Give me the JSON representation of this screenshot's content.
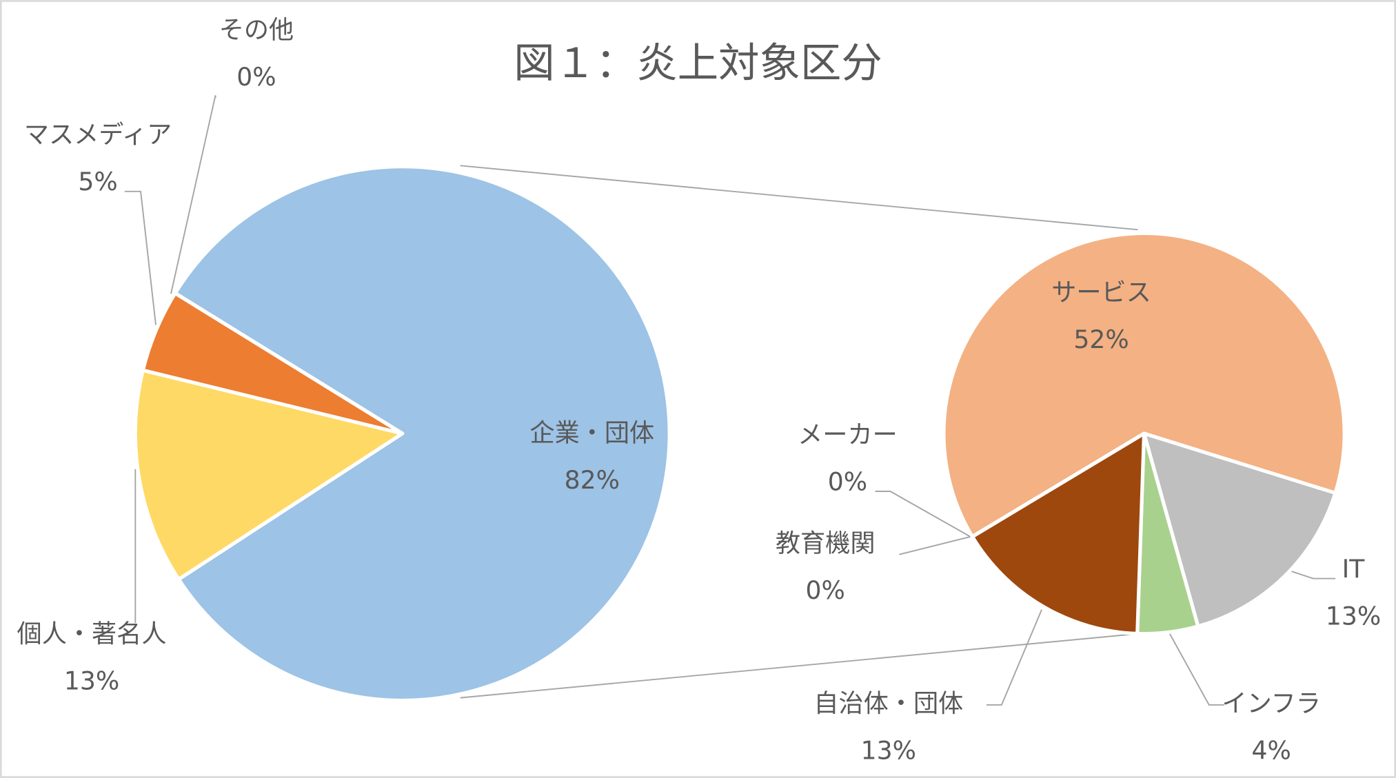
{
  "chart_data": [
    {
      "type": "pie",
      "title": "図１：炎上対象区分",
      "categories": [
        "企業・団体",
        "個人・著名人",
        "マスメディア",
        "その他"
      ],
      "values": [
        82,
        13,
        5,
        0
      ],
      "value_labels": [
        "82%",
        "13%",
        "5%",
        "0%"
      ],
      "colors": [
        "#9dc3e6",
        "#ffd966",
        "#ed7d31",
        "#a5a5a5"
      ]
    },
    {
      "type": "pie",
      "categories": [
        "サービス",
        "IT",
        "インフラ",
        "自治体・団体",
        "教育機関",
        "メーカー"
      ],
      "values": [
        52,
        13,
        4,
        13,
        0,
        0
      ],
      "value_labels": [
        "52%",
        "13%",
        "4%",
        "13%",
        "0%",
        "0%"
      ],
      "colors": [
        "#f4b183",
        "#bfbfbf",
        "#a9d18e",
        "#9e480e",
        "#264478",
        "#43682b"
      ]
    }
  ]
}
